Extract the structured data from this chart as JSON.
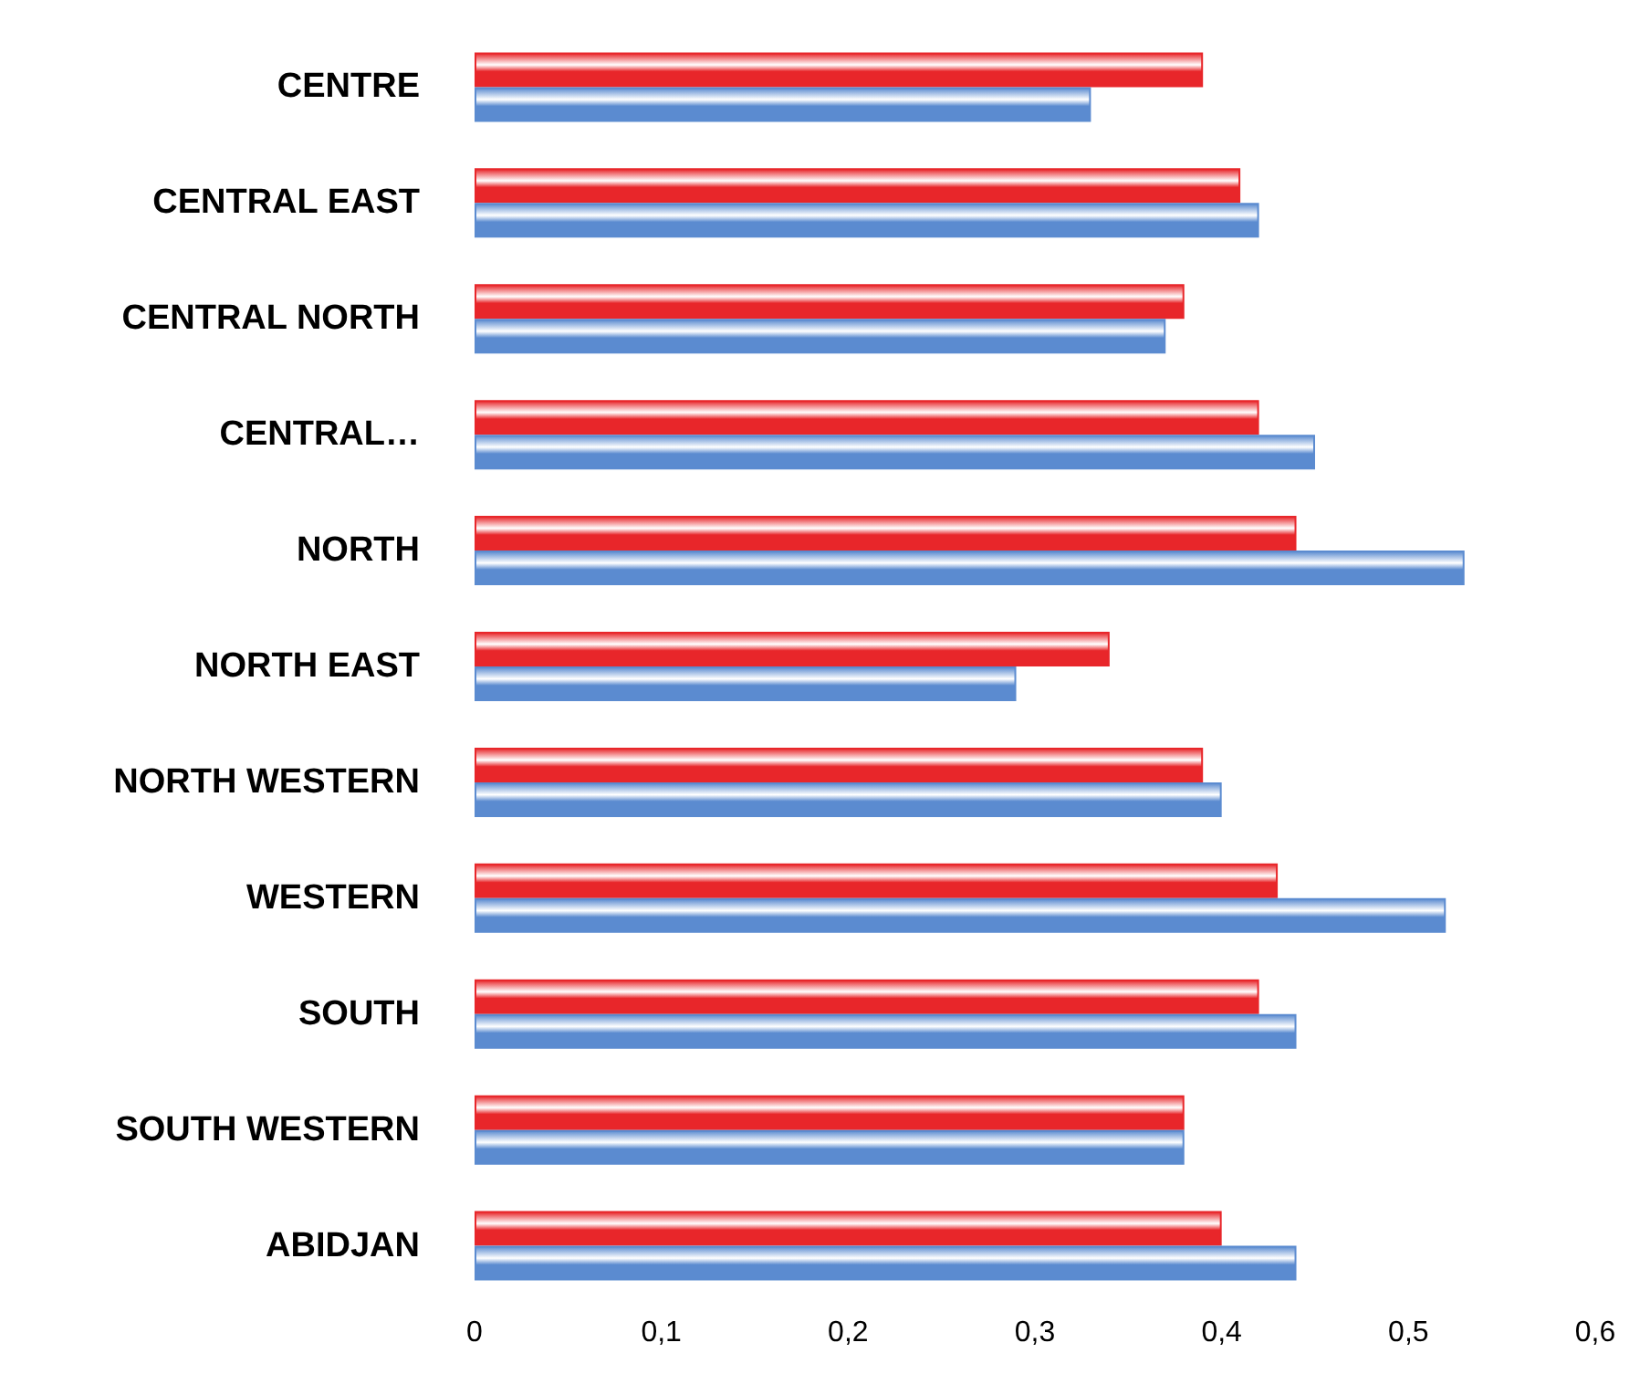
{
  "chart_data": {
    "type": "bar",
    "orientation": "horizontal",
    "categories": [
      "CENTRE",
      "CENTRAL EAST",
      "CENTRAL NORTH",
      "CENTRAL…",
      "NORTH",
      "NORTH EAST",
      "NORTH WESTERN",
      "WESTERN",
      "SOUTH",
      "SOUTH WESTERN",
      "ABIDJAN"
    ],
    "series": [
      {
        "color": "#e8262a",
        "values": [
          0.39,
          0.41,
          0.38,
          0.42,
          0.44,
          0.34,
          0.39,
          0.43,
          0.42,
          0.38,
          0.4
        ]
      },
      {
        "color": "#5b8bd0",
        "values": [
          0.33,
          0.42,
          0.37,
          0.45,
          0.53,
          0.29,
          0.4,
          0.52,
          0.44,
          0.38,
          0.44
        ]
      }
    ],
    "xlim": [
      0,
      0.6
    ],
    "xticks": [
      0,
      {
        "value": 0.1,
        "label": "0,1"
      },
      {
        "value": 0.2,
        "label": "0,2"
      },
      {
        "value": 0.3,
        "label": "0,3"
      },
      {
        "value": 0.4,
        "label": "0,4"
      },
      {
        "value": 0.5,
        "label": "0,5"
      },
      {
        "value": 0.6,
        "label": "0,6"
      }
    ],
    "grid": false
  }
}
